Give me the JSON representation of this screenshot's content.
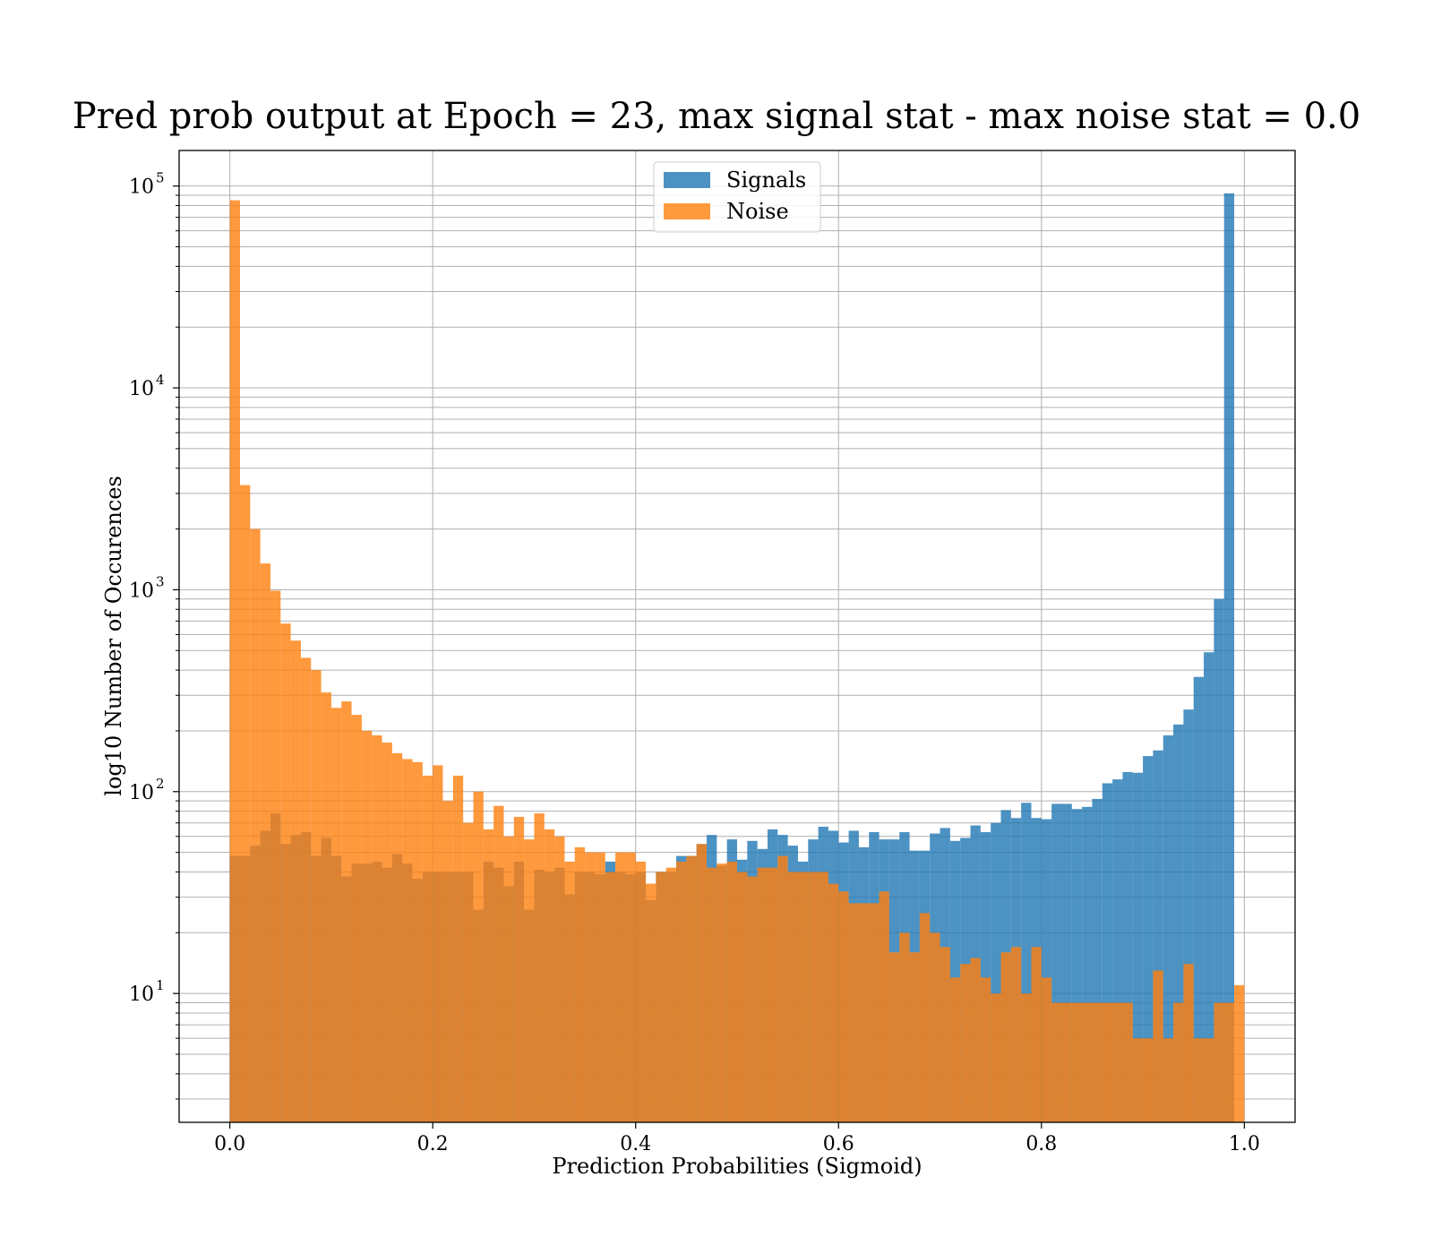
{
  "chart_data": {
    "type": "histogram",
    "title": "Pred prob output at Epoch = 23, max signal stat - max noise stat = 0.0",
    "xlabel": "Prediction Probabilities (Sigmoid)",
    "ylabel": "log10 Number of Occurences",
    "xlim": [
      -0.05,
      1.05
    ],
    "ylim": [
      2.3,
      150000
    ],
    "yscale": "log",
    "grid": true,
    "legend_position": "top-center",
    "bin_edges": [
      0.0,
      1.0
    ],
    "bin_count": 100,
    "x_ticks": [
      "0.0",
      "0.2",
      "0.4",
      "0.6",
      "0.8",
      "1.0"
    ],
    "y_ticks": [
      {
        "base": "10",
        "exp": "1",
        "value": 10
      },
      {
        "base": "10",
        "exp": "2",
        "value": 100
      },
      {
        "base": "10",
        "exp": "3",
        "value": 1000
      },
      {
        "base": "10",
        "exp": "4",
        "value": 10000
      },
      {
        "base": "10",
        "exp": "5",
        "value": 100000
      }
    ],
    "series": [
      {
        "name": "Signals",
        "color": "#1f77b4",
        "opacity": 0.8,
        "values": [
          48,
          48,
          54,
          64,
          78,
          55,
          61,
          63,
          48,
          59,
          48,
          38,
          44,
          44,
          45,
          42,
          49,
          44,
          37,
          40,
          40,
          40,
          40,
          40,
          26,
          45,
          42,
          34,
          45,
          26,
          41,
          40,
          42,
          31,
          40,
          40,
          39,
          45,
          40,
          39,
          40,
          29,
          40,
          40,
          48,
          48,
          55,
          61,
          43,
          58,
          46,
          57,
          52,
          65,
          61,
          54,
          45,
          58,
          67,
          64,
          56,
          64,
          53,
          63,
          58,
          58,
          63,
          51,
          51,
          62,
          66,
          57,
          59,
          68,
          63,
          70,
          81,
          74,
          88,
          74,
          73,
          87,
          87,
          82,
          84,
          92,
          110,
          115,
          125,
          124,
          150,
          160,
          190,
          215,
          255,
          370,
          490,
          900,
          92000,
          0
        ]
      },
      {
        "name": "Noise",
        "color": "#ff7f0e",
        "opacity": 0.8,
        "values": [
          85000,
          3300,
          2000,
          1350,
          990,
          680,
          560,
          460,
          400,
          310,
          260,
          280,
          240,
          200,
          190,
          175,
          155,
          145,
          140,
          120,
          135,
          90,
          120,
          70,
          100,
          65,
          85,
          60,
          75,
          58,
          78,
          65,
          60,
          45,
          53,
          50,
          50,
          40,
          50,
          50,
          45,
          35,
          40,
          42,
          45,
          48,
          55,
          42,
          44,
          45,
          40,
          38,
          42,
          42,
          48,
          40,
          40,
          40,
          40,
          35,
          32,
          28,
          28,
          28,
          32,
          16,
          20,
          16,
          25,
          20,
          17,
          12,
          14,
          15,
          12,
          10,
          16,
          17,
          10,
          17,
          12,
          9,
          9,
          9,
          9,
          9,
          9,
          9,
          9,
          6,
          6,
          13,
          6,
          9,
          14,
          6,
          6,
          9,
          9,
          11
        ]
      }
    ]
  }
}
